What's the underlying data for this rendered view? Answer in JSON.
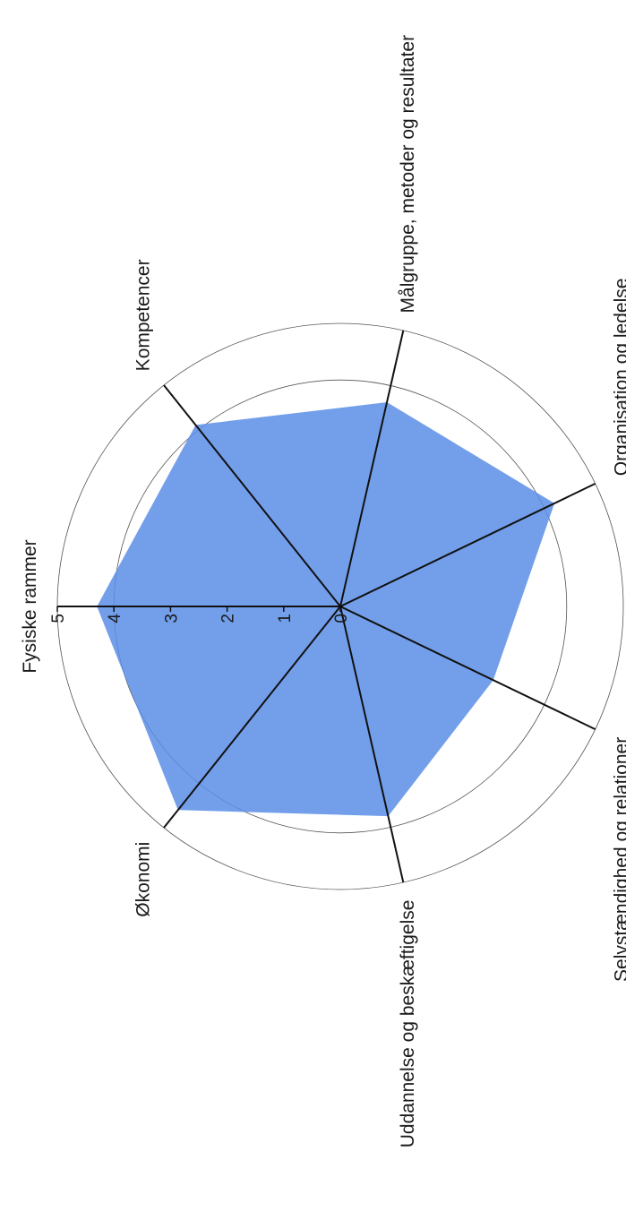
{
  "chart_data": {
    "type": "radar",
    "title": "",
    "r_ticks": [
      "0",
      "1",
      "2",
      "3",
      "4",
      "5"
    ],
    "r_range": [
      0,
      5
    ],
    "grid": "circular rings at 4 and 5",
    "orientation": "rotated 90° clockwise (labels read bottom-to-top)",
    "categories": [
      "Fysiske rammer",
      "Kompetencer",
      "Målgruppe, metoder og resultater",
      "Organisation og ledelse",
      "Selvstændighed og relationer",
      "Uddannelse og beskæftigelse",
      "Økonomi"
    ],
    "series": [
      {
        "values": [
          4.3,
          4.1,
          3.7,
          4.2,
          3.0,
          3.8,
          4.6
        ]
      }
    ],
    "colors": {
      "fill": "#5b8ee6",
      "axis": "#111111",
      "grid": "#555555"
    }
  }
}
